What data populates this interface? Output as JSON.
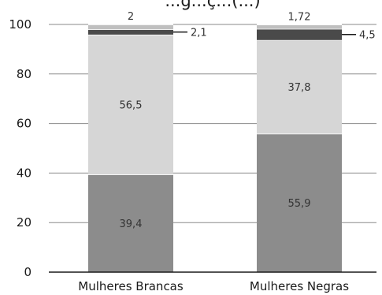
{
  "chart_data": {
    "type": "bar",
    "stacked": true,
    "title": "",
    "title_fragment": "...g...ç...(...)",
    "categories": [
      "Mulheres Brancas",
      "Mulheres Negras"
    ],
    "ylim": [
      0,
      100
    ],
    "yticks": [
      0,
      20,
      40,
      60,
      80,
      100
    ],
    "grid": true,
    "series": [
      {
        "color": "#8c8c8c",
        "values": [
          39.4,
          55.9
        ],
        "labels": [
          "39,4",
          "55,9"
        ]
      },
      {
        "color": "#d6d6d6",
        "values": [
          56.5,
          37.8
        ],
        "labels": [
          "56,5",
          "37,8"
        ]
      },
      {
        "color": "#4a4a4a",
        "values": [
          2.1,
          4.5
        ],
        "labels": [
          "2,1",
          "4,5"
        ]
      },
      {
        "color": "#bfbfbf",
        "values": [
          2.0,
          1.72
        ],
        "labels": [
          "2",
          "1,72"
        ]
      }
    ]
  }
}
